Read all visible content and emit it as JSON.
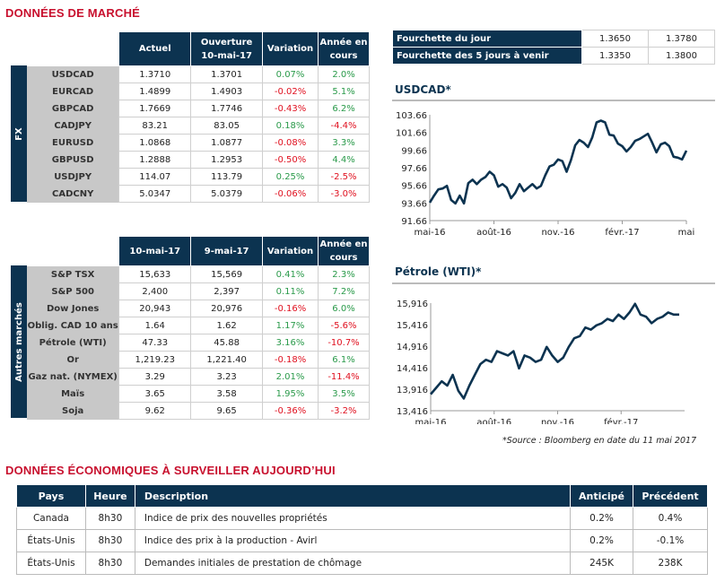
{
  "title": "DONNÉES DE MARCHÉ",
  "fx": {
    "side_label": "FX",
    "headers": [
      "Actuel",
      "Ouverture 10-mai-17",
      "Variation",
      "Année en cours"
    ],
    "rows": [
      {
        "name": "USDCAD",
        "a": "1.3710",
        "b": "1.3701",
        "var": "0.07%",
        "ytd": "2.0%"
      },
      {
        "name": "EURCAD",
        "a": "1.4899",
        "b": "1.4903",
        "var": "-0.02%",
        "ytd": "5.1%"
      },
      {
        "name": "GBPCAD",
        "a": "1.7669",
        "b": "1.7746",
        "var": "-0.43%",
        "ytd": "6.2%"
      },
      {
        "name": "CADJPY",
        "a": "83.21",
        "b": "83.05",
        "var": "0.18%",
        "ytd": "-4.4%"
      },
      {
        "name": "EURUSD",
        "a": "1.0868",
        "b": "1.0877",
        "var": "-0.08%",
        "ytd": "3.3%"
      },
      {
        "name": "GBPUSD",
        "a": "1.2888",
        "b": "1.2953",
        "var": "-0.50%",
        "ytd": "4.4%"
      },
      {
        "name": "USDJPY",
        "a": "114.07",
        "b": "113.79",
        "var": "0.25%",
        "ytd": "-2.5%"
      },
      {
        "name": "CADCNY",
        "a": "5.0347",
        "b": "5.0379",
        "var": "-0.06%",
        "ytd": "-3.0%"
      }
    ]
  },
  "other": {
    "side_label": "Autres marchés",
    "headers": [
      "10-mai-17",
      "9-mai-17",
      "Variation",
      "Année en cours"
    ],
    "rows": [
      {
        "name": "S&P TSX",
        "a": "15,633",
        "b": "15,569",
        "var": "0.41%",
        "ytd": "2.3%"
      },
      {
        "name": "S&P 500",
        "a": "2,400",
        "b": "2,397",
        "var": "0.11%",
        "ytd": "7.2%"
      },
      {
        "name": "Dow Jones",
        "a": "20,943",
        "b": "20,976",
        "var": "-0.16%",
        "ytd": "6.0%"
      },
      {
        "name": "Oblig. CAD 10 ans",
        "a": "1.64",
        "b": "1.62",
        "var": "1.17%",
        "ytd": "-5.6%"
      },
      {
        "name": "Pétrole (WTI)",
        "a": "47.33",
        "b": "45.88",
        "var": "3.16%",
        "ytd": "-10.7%"
      },
      {
        "name": "Or",
        "a": "1,219.23",
        "b": "1,221.40",
        "var": "-0.18%",
        "ytd": "6.1%"
      },
      {
        "name": "Gaz nat. (NYMEX)",
        "a": "3.29",
        "b": "3.23",
        "var": "2.01%",
        "ytd": "-11.4%"
      },
      {
        "name": "Maïs",
        "a": "3.65",
        "b": "3.58",
        "var": "1.95%",
        "ytd": "3.5%"
      },
      {
        "name": "Soja",
        "a": "9.62",
        "b": "9.65",
        "var": "-0.36%",
        "ytd": "-3.2%"
      }
    ]
  },
  "range": [
    {
      "label": "Fourchette du jour",
      "low": "1.3650",
      "high": "1.3780"
    },
    {
      "label": "Fourchette des 5 jours à venir",
      "low": "1.3350",
      "high": "1.3800"
    }
  ],
  "chart_data": [
    {
      "type": "line",
      "title": "USDCAD*",
      "ylim": [
        91.66,
        103.66
      ],
      "yticks": [
        "103.66",
        "101.66",
        "99.66",
        "97.66",
        "95.66",
        "93.66",
        "91.66"
      ],
      "xticks": [
        "mai-16",
        "août-16",
        "nov.-16",
        "févr.-17",
        "mai"
      ],
      "values": [
        93.7,
        94.5,
        95.2,
        95.3,
        95.6,
        94.0,
        93.6,
        94.5,
        93.6,
        95.9,
        96.3,
        95.8,
        96.3,
        96.6,
        97.2,
        96.8,
        95.5,
        95.8,
        95.4,
        94.2,
        94.8,
        95.8,
        95.0,
        95.4,
        95.8,
        95.3,
        95.6,
        96.8,
        97.8,
        98.0,
        98.6,
        98.4,
        97.2,
        98.5,
        100.2,
        100.8,
        100.5,
        100.0,
        101.1,
        102.8,
        103.0,
        102.8,
        101.4,
        101.3,
        100.4,
        100.1,
        99.5,
        100.0,
        100.7,
        100.9,
        101.2,
        101.5,
        100.5,
        99.4,
        100.3,
        100.5,
        100.1,
        98.9,
        98.8,
        98.6,
        99.6
      ]
    },
    {
      "type": "line",
      "title": "Pétrole (WTI)*",
      "ylim": [
        13416,
        15916
      ],
      "yticks": [
        "15,916",
        "15,416",
        "14,916",
        "14,416",
        "13,916",
        "13,416"
      ],
      "xticks": [
        "mai-16",
        "août-16",
        "nov.-16",
        "févr.-17"
      ],
      "values": [
        13800,
        13950,
        14100,
        14000,
        14250,
        13880,
        13700,
        14000,
        14250,
        14500,
        14600,
        14550,
        14800,
        14750,
        14700,
        14800,
        14400,
        14700,
        14650,
        14550,
        14600,
        14900,
        14700,
        14550,
        14650,
        14900,
        15100,
        15150,
        15350,
        15300,
        15400,
        15450,
        15550,
        15500,
        15650,
        15550,
        15700,
        15900,
        15650,
        15600,
        15450,
        15550,
        15600,
        15700,
        15650,
        15650
      ]
    }
  ],
  "source": "*Source : Bloomberg en date du  11 mai 2017",
  "events": {
    "title": "DONNÉES ÉCONOMIQUES À SURVEILLER AUJOURD’HUI",
    "headers": [
      "Pays",
      "Heure",
      "Description",
      "Anticipé",
      "Précédent"
    ],
    "rows": [
      [
        "Canada",
        "8h30",
        "Indice de prix des nouvelles propriétés",
        "0.2%",
        "0.4%"
      ],
      [
        "États-Unis",
        "8h30",
        "Indice des prix à la production - Avirl",
        "0.2%",
        "-0.1%"
      ],
      [
        "États-Unis",
        "8h30",
        "Demandes initiales de prestation de chômage",
        "245K",
        "238K"
      ]
    ]
  },
  "colors": {
    "navy": "#0c3350",
    "red": "#c8102e",
    "green": "#2a9a4a"
  }
}
